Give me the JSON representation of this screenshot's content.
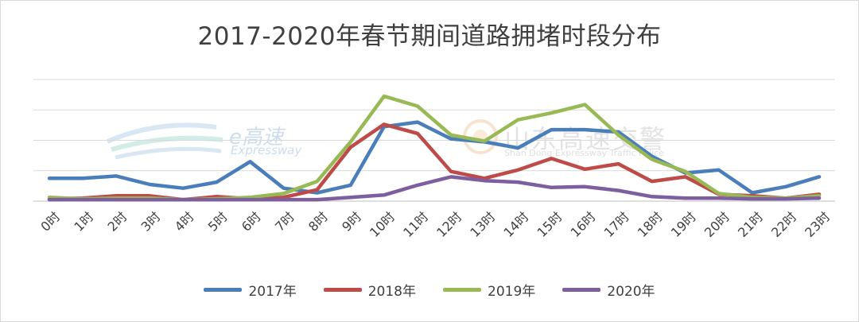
{
  "title": "2017-2020年春节期间道路拥堵时段分布",
  "watermarks": {
    "left_brand": "e高速",
    "left_sub": "Expressway",
    "right_brand": "山东高速交警",
    "right_sub": "Shan Dong Expressway Traffic Police"
  },
  "chart_data": {
    "type": "line",
    "title": "2017-2020年春节期间道路拥堵时段分布",
    "xlabel": "",
    "ylabel": "",
    "ylim": [
      0,
      8
    ],
    "grid": true,
    "legend_position": "bottom",
    "categories": [
      "0时",
      "1时",
      "2时",
      "3时",
      "4时",
      "5时",
      "6时",
      "7时",
      "8时",
      "9时",
      "10时",
      "11时",
      "12时",
      "13时",
      "14时",
      "15时",
      "16时",
      "17时",
      "18时",
      "19时",
      "20时",
      "21时",
      "22时",
      "23时"
    ],
    "series": [
      {
        "name": "2017年",
        "color": "#4a7ebb",
        "values": [
          1.5,
          1.5,
          1.65,
          1.1,
          0.85,
          1.25,
          2.6,
          0.85,
          0.55,
          1.05,
          4.9,
          5.2,
          4.1,
          3.9,
          3.5,
          4.7,
          4.7,
          4.55,
          2.95,
          1.85,
          2.05,
          0.55,
          0.95,
          1.6
        ]
      },
      {
        "name": "2018年",
        "color": "#be4b48",
        "values": [
          0.15,
          0.2,
          0.35,
          0.35,
          0.1,
          0.3,
          0.15,
          0.25,
          0.75,
          3.55,
          5.05,
          4.45,
          1.95,
          1.5,
          2.05,
          2.8,
          2.1,
          2.45,
          1.3,
          1.6,
          0.45,
          0.35,
          0.2,
          0.45
        ]
      },
      {
        "name": "2019年",
        "color": "#98b954",
        "values": [
          0.25,
          0.15,
          0.2,
          0.2,
          0.1,
          0.15,
          0.25,
          0.5,
          1.3,
          3.9,
          6.9,
          6.25,
          4.35,
          3.95,
          5.35,
          5.8,
          6.35,
          4.35,
          2.75,
          1.95,
          0.5,
          0.25,
          0.2,
          0.35
        ]
      },
      {
        "name": "2020年",
        "color": "#7d5fa0",
        "values": [
          0.1,
          0.1,
          0.1,
          0.1,
          0.1,
          0.1,
          0.1,
          0.1,
          0.1,
          0.25,
          0.4,
          1.05,
          1.6,
          1.35,
          1.25,
          0.9,
          0.95,
          0.7,
          0.3,
          0.2,
          0.2,
          0.15,
          0.15,
          0.2
        ]
      }
    ]
  }
}
